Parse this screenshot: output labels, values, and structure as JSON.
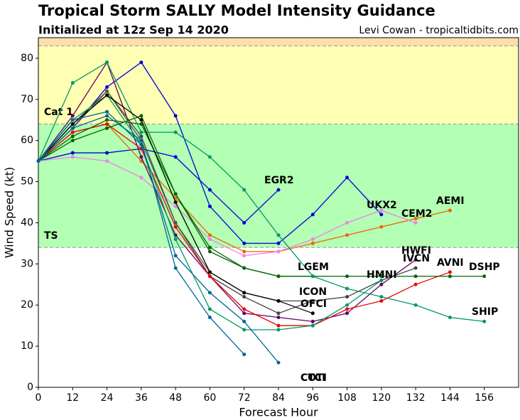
{
  "chart_data": {
    "type": "line",
    "title": "Tropical Storm SALLY Model Intensity Guidance",
    "subtitle": "Initialized at 12z Sep 14 2020",
    "credit": "Levi Cowan - tropicaltidbits.com",
    "x_label": "Forecast Hour",
    "y_label": "Wind Speed (kt)",
    "xlim": [
      0,
      168
    ],
    "ylim": [
      0,
      85
    ],
    "xticks": [
      0,
      12,
      24,
      36,
      48,
      60,
      72,
      84,
      96,
      108,
      120,
      132,
      144,
      156
    ],
    "yticks": [
      0,
      10,
      20,
      30,
      40,
      50,
      60,
      70,
      80
    ],
    "bands": [
      {
        "name": "TS",
        "lo": 34,
        "hi": 64,
        "color": "#b3ffb3",
        "label_color": "#33aa33"
      },
      {
        "name": "Cat 1",
        "lo": 64,
        "hi": 83,
        "color": "#ffffb3",
        "label_color": "#aaaa33"
      },
      {
        "lo": 83,
        "color": "#ffdead"
      }
    ],
    "x": [
      0,
      12,
      24,
      36,
      48,
      60,
      72,
      84,
      96,
      108,
      120,
      132,
      144,
      156
    ],
    "series": [
      {
        "name": "EGR2",
        "color": "#0000dd",
        "values": [
          55,
          57,
          57,
          58,
          56,
          48,
          40,
          48,
          null,
          null,
          null,
          null,
          null,
          null
        ]
      },
      {
        "name": "UKX2",
        "color": "#0000dd",
        "values": [
          55,
          63,
          73,
          79,
          66,
          44,
          35,
          35,
          42,
          51,
          42,
          null,
          null,
          null
        ]
      },
      {
        "name": "AEMI",
        "color": "#ee6600",
        "values": [
          55,
          62,
          64,
          55,
          46,
          37,
          33,
          33,
          35,
          37,
          39,
          41,
          43,
          null
        ]
      },
      {
        "name": "CEM2",
        "color": "#ee82ee",
        "values": [
          55,
          56,
          55,
          51,
          44,
          36,
          32,
          33,
          36,
          40,
          43,
          40,
          null,
          null
        ]
      },
      {
        "name": "HWFI",
        "color": "#660066",
        "values": [
          55,
          66,
          79,
          56,
          37,
          27,
          18,
          17,
          16,
          18,
          25,
          31,
          null,
          null
        ]
      },
      {
        "name": "IVCN",
        "color": "#444444",
        "values": [
          55,
          64,
          72,
          61,
          40,
          27,
          22,
          18,
          21,
          22,
          26,
          29,
          null,
          null
        ]
      },
      {
        "name": "AVNI",
        "color": "#ee0000",
        "values": [
          55,
          62,
          64,
          58,
          39,
          27,
          19,
          15,
          15,
          19,
          21,
          25,
          28,
          null
        ]
      },
      {
        "name": "LGEM",
        "color": "#006600",
        "values": [
          55,
          61,
          65,
          64,
          47,
          34,
          29,
          27,
          27,
          null,
          null,
          null,
          null,
          null
        ]
      },
      {
        "name": "DSHP",
        "color": "#006600",
        "values": [
          55,
          60,
          63,
          66,
          47,
          33,
          29,
          27,
          27,
          27,
          27,
          27,
          27,
          27
        ]
      },
      {
        "name": "HMNI",
        "color": "#009966",
        "values": [
          55,
          65,
          71,
          59,
          36,
          19,
          14,
          14,
          15,
          20,
          26,
          null,
          null,
          null
        ]
      },
      {
        "name": "SHIP",
        "color": "#009966",
        "values": [
          55,
          74,
          79,
          62,
          62,
          56,
          48,
          37,
          27,
          24,
          22,
          20,
          17,
          16
        ]
      },
      {
        "name": "ICON",
        "color": "#555555",
        "values": [
          55,
          63,
          72,
          60,
          40,
          28,
          23,
          21,
          21,
          null,
          null,
          null,
          null,
          null
        ]
      },
      {
        "name": "OFCI",
        "color": "#000000",
        "values": [
          55,
          64,
          71,
          65,
          45,
          28,
          23,
          21,
          18,
          null,
          null,
          null,
          null,
          null
        ]
      },
      {
        "name": "COTI",
        "color": "#006699",
        "values": [
          55,
          65,
          67,
          59,
          32,
          23,
          16,
          6,
          null,
          null,
          null,
          null,
          null,
          null
        ]
      },
      {
        "name": "CTCI",
        "color": "#006699",
        "values": [
          55,
          63,
          66,
          60,
          29,
          17,
          8,
          null,
          null,
          null,
          null,
          null,
          null,
          null
        ]
      }
    ]
  }
}
